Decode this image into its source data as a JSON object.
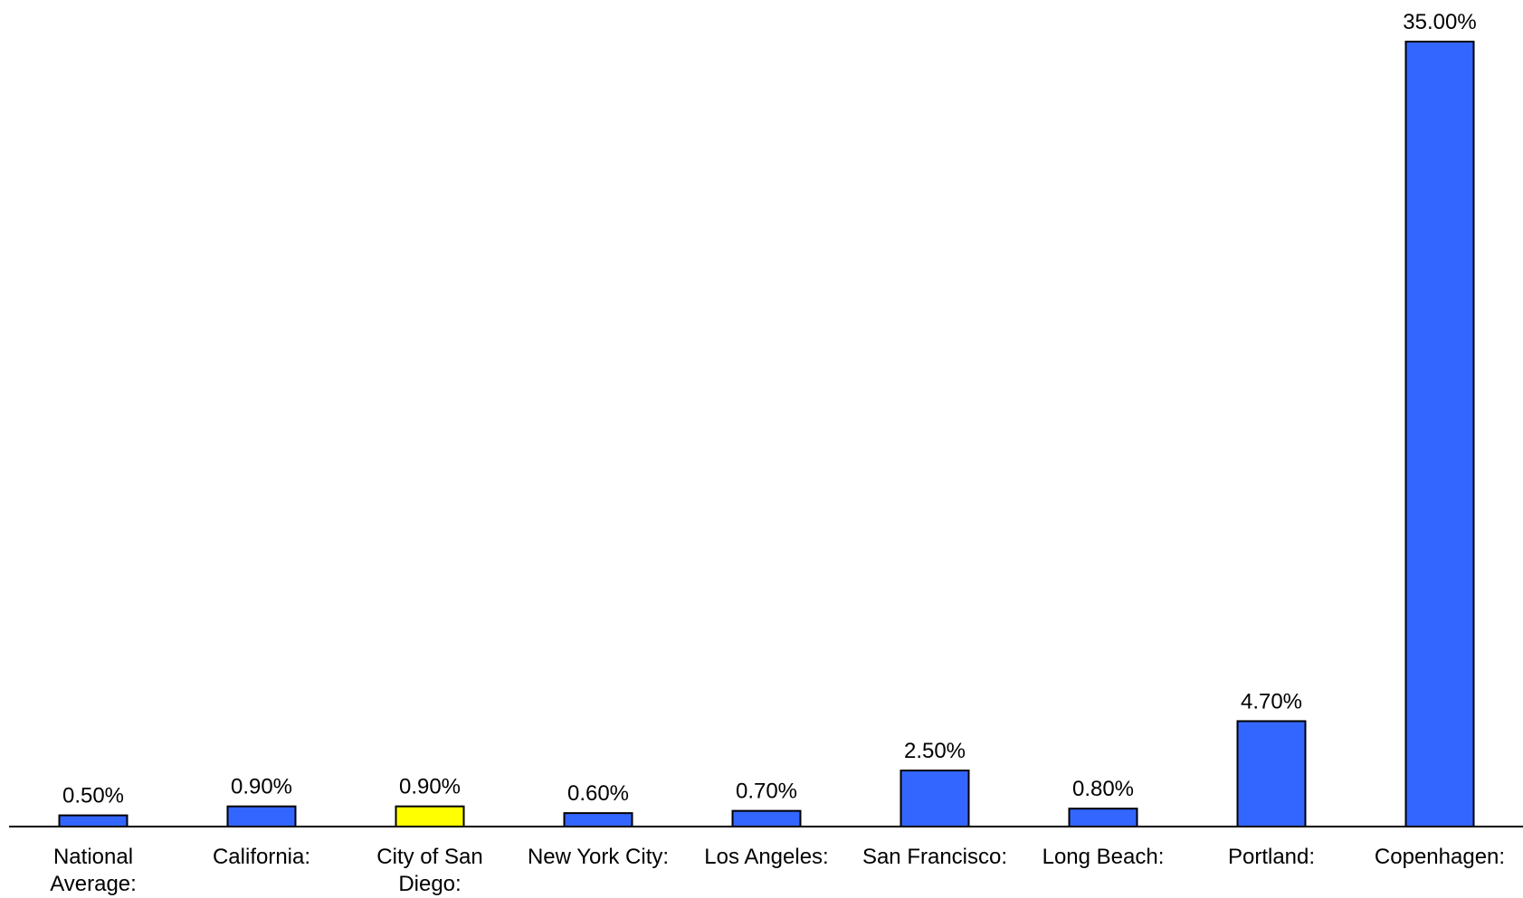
{
  "chart_data": {
    "type": "bar",
    "categories": [
      [
        "National",
        "Average:"
      ],
      [
        "California:"
      ],
      [
        "City of San",
        "Diego:"
      ],
      [
        "New York City:"
      ],
      [
        "Los Angeles:"
      ],
      [
        "San Francisco:"
      ],
      [
        "Long Beach:"
      ],
      [
        "Portland:"
      ],
      [
        "Copenhagen:"
      ]
    ],
    "values": [
      0.5,
      0.9,
      0.9,
      0.6,
      0.7,
      2.5,
      0.8,
      4.7,
      35.0
    ],
    "value_labels": [
      "0.50%",
      "0.90%",
      "0.90%",
      "0.60%",
      "0.70%",
      "2.50%",
      "0.80%",
      "4.70%",
      "35.00%"
    ],
    "highlight_index": 2,
    "ylim": [
      0,
      35
    ],
    "grid": false,
    "legend": "none",
    "colors": {
      "bar": "#3366FF",
      "highlight": "#FFFF00",
      "outline": "#000000",
      "axis": "#000000"
    }
  }
}
